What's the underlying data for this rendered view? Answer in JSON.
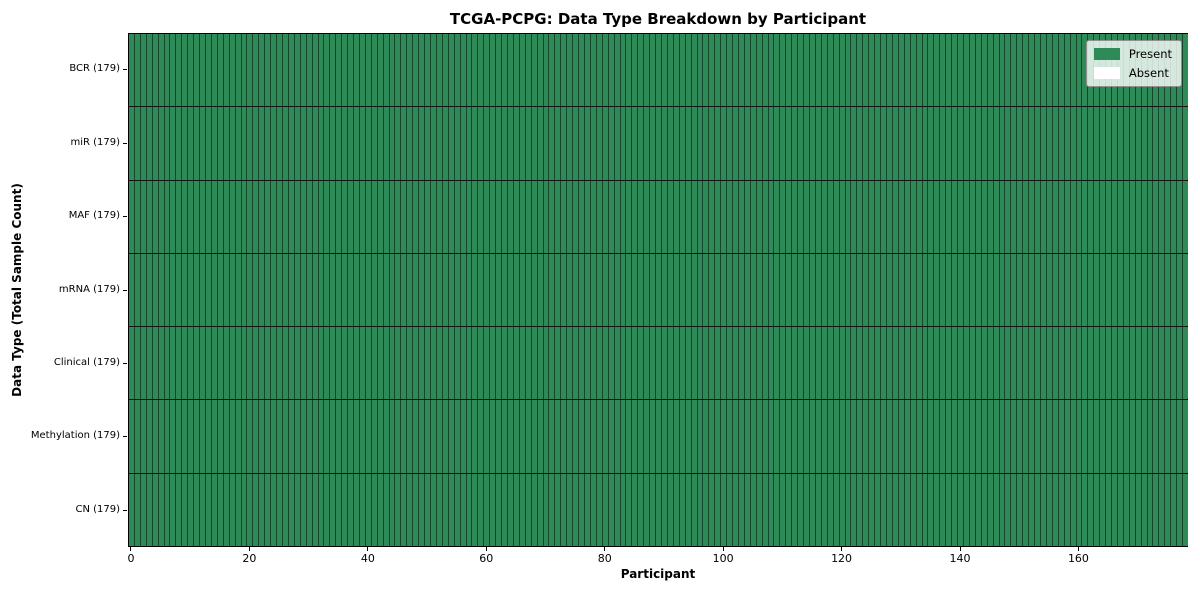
{
  "figure": {
    "title": "TCGA-PCPG: Data Type Breakdown by Participant",
    "xlabel": "Participant",
    "ylabel": "Data Type (Total Sample Count)"
  },
  "chart_data": {
    "type": "heatmap",
    "title": "TCGA-PCPG: Data Type Breakdown by Participant",
    "xlabel": "Participant",
    "ylabel": "Data Type (Total Sample Count)",
    "n_participants": 179,
    "x_range": [
      -0.5,
      178.5
    ],
    "x_ticks": [
      0,
      20,
      40,
      60,
      80,
      100,
      120,
      140,
      160
    ],
    "categories_y": [
      "BCR (179)",
      "miR (179)",
      "MAF (179)",
      "mRNA (179)",
      "Clinical (179)",
      "Methylation (179)",
      "CN (179)"
    ],
    "series": [
      {
        "name": "BCR (179)",
        "total_sample_count": 179,
        "present_count": 179,
        "absent_count": 0
      },
      {
        "name": "miR (179)",
        "total_sample_count": 179,
        "present_count": 179,
        "absent_count": 0
      },
      {
        "name": "MAF (179)",
        "total_sample_count": 179,
        "present_count": 179,
        "absent_count": 0
      },
      {
        "name": "mRNA (179)",
        "total_sample_count": 179,
        "present_count": 179,
        "absent_count": 0
      },
      {
        "name": "Clinical (179)",
        "total_sample_count": 179,
        "present_count": 179,
        "absent_count": 0
      },
      {
        "name": "Methylation (179)",
        "total_sample_count": 179,
        "present_count": 179,
        "absent_count": 0
      },
      {
        "name": "CN (179)",
        "total_sample_count": 179,
        "present_count": 179,
        "absent_count": 0
      }
    ],
    "legend": {
      "position": "upper right",
      "entries": [
        {
          "label": "Present",
          "color": "#2e8b57"
        },
        {
          "label": "Absent",
          "color": "#ffffff"
        }
      ]
    },
    "colors": {
      "present": "#2e8b57",
      "absent": "#ffffff",
      "cell_edge": "rgba(0,0,0,0.5)",
      "row_divider": "#131313",
      "spine": "#000000"
    },
    "grid": "cell-borders",
    "legend_on": true
  }
}
